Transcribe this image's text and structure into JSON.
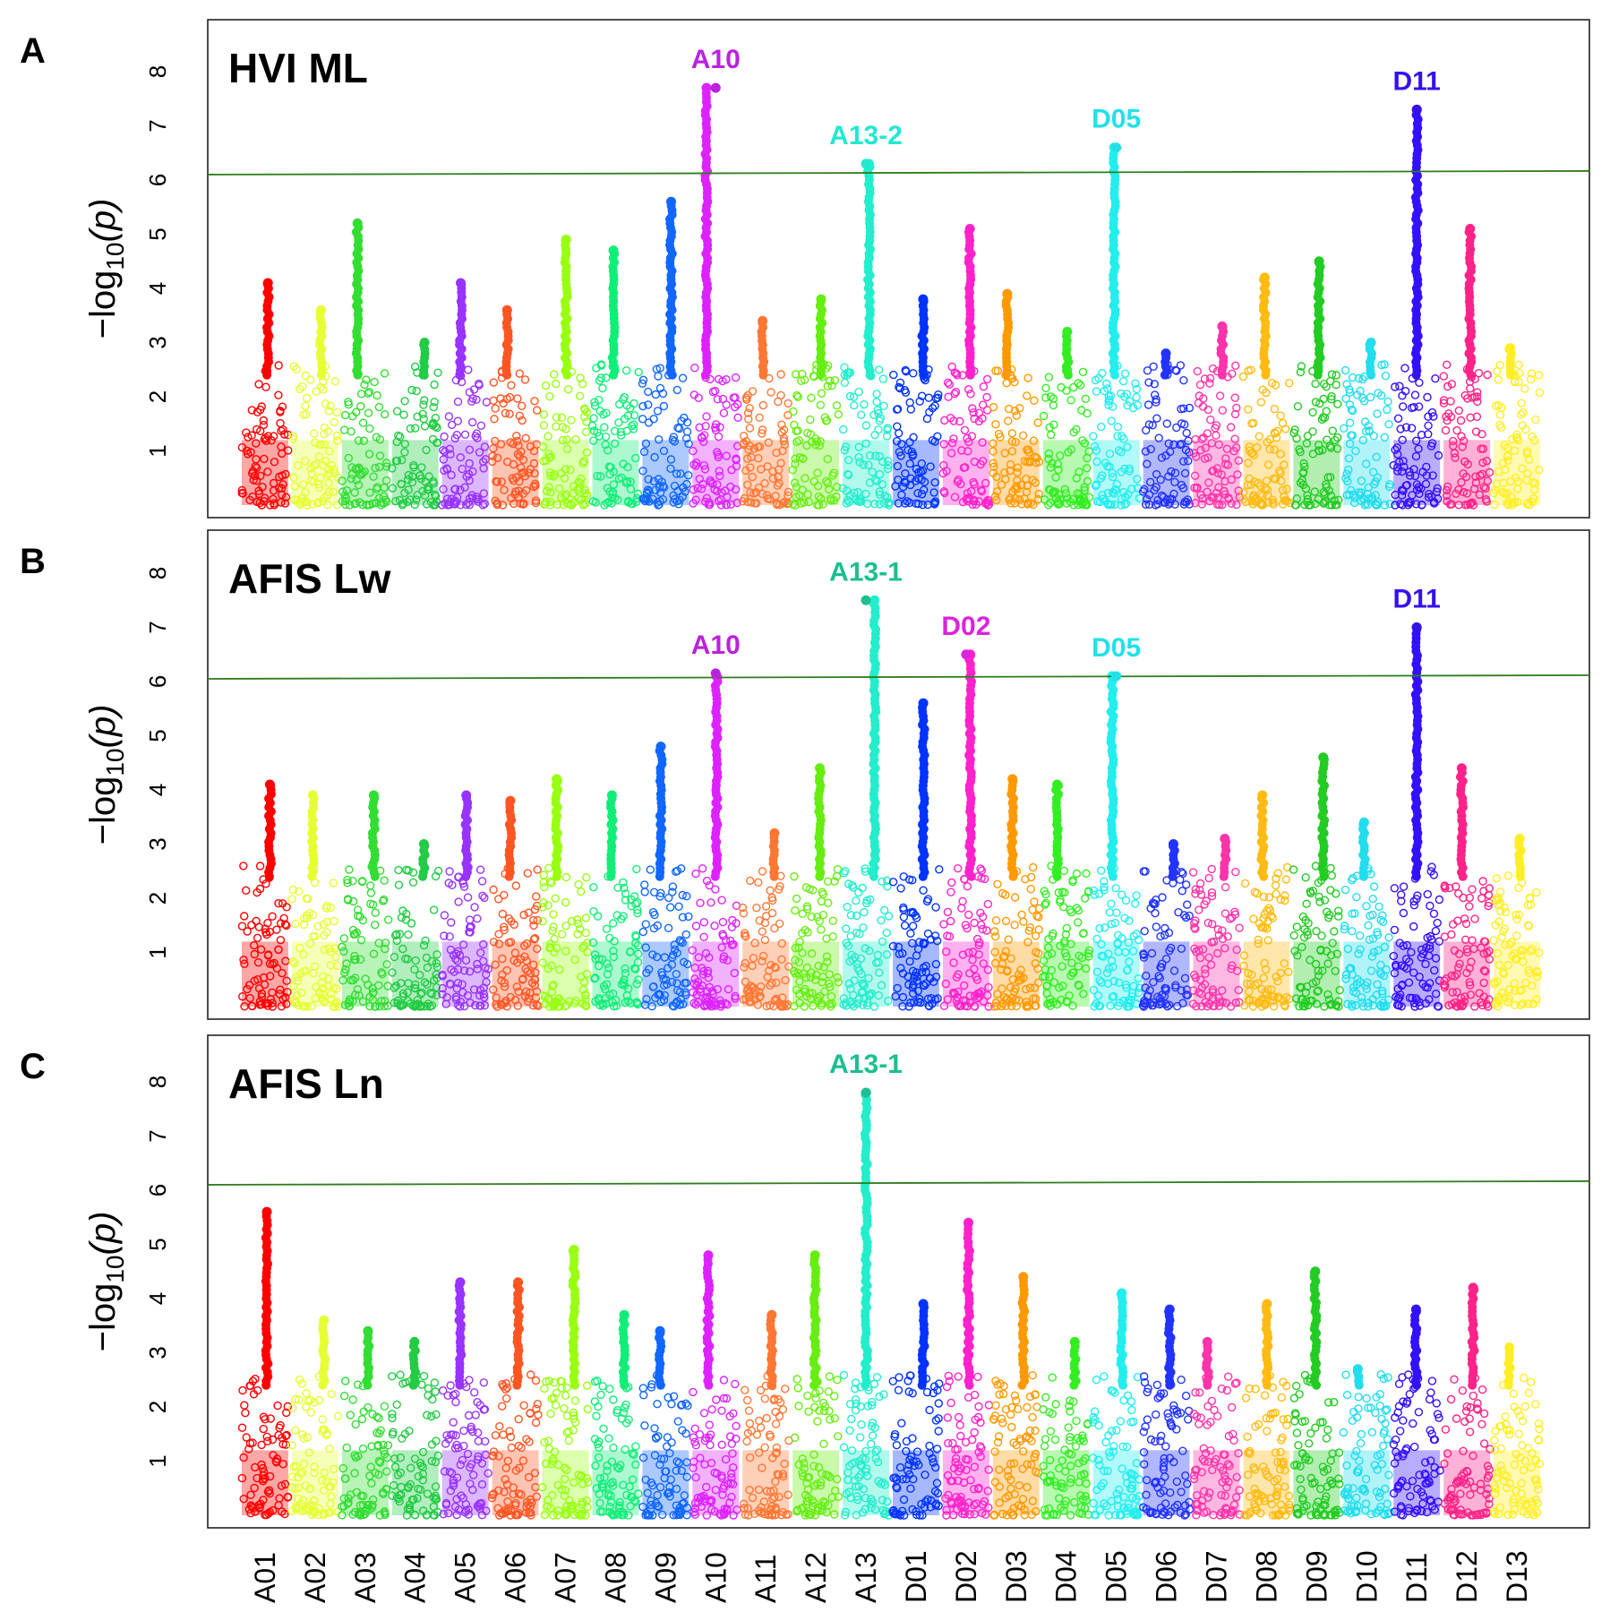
{
  "chart_data": {
    "type": "scatter",
    "plot_kind": "manhattan",
    "chromosomes": [
      "A01",
      "A02",
      "A03",
      "A04",
      "A05",
      "A06",
      "A07",
      "A08",
      "A09",
      "A10",
      "A11",
      "A12",
      "A13",
      "D01",
      "D02",
      "D03",
      "D04",
      "D05",
      "D06",
      "D07",
      "D08",
      "D09",
      "D10",
      "D11",
      "D12",
      "D13"
    ],
    "chromosome_colors": [
      "#ff0000",
      "#e6ff33",
      "#33dd33",
      "#22cc44",
      "#9933ff",
      "#ff5522",
      "#99ff11",
      "#11ee77",
      "#1166ff",
      "#dd22ff",
      "#ff7733",
      "#66ee11",
      "#22eecc",
      "#0033ff",
      "#ff22cc",
      "#ff9900",
      "#33ee22",
      "#22eeee",
      "#2233ff",
      "#ff33aa",
      "#ffbb11",
      "#22cc22",
      "#22ddee",
      "#3311ff",
      "#ff2288",
      "#ffee22"
    ],
    "xtick_labels": [
      "A01",
      "A02",
      "A03",
      "A04",
      "A05",
      "A06",
      "A07",
      "A08",
      "A09",
      "A10",
      "A11",
      "A12",
      "A13",
      "D01",
      "D02",
      "D03",
      "D04",
      "D05",
      "D06",
      "D07",
      "D08",
      "D09",
      "D10",
      "D11",
      "D12",
      "D13"
    ],
    "ylabel_prefix": "−log",
    "ylabel_sub": "10",
    "ylabel_suffix": "(p)",
    "yticks": [
      "1",
      "2",
      "3",
      "4",
      "5",
      "6",
      "7",
      "8"
    ],
    "ylim": [
      0,
      8.5
    ],
    "panels": [
      {
        "letter": "A",
        "title": "HVI ML",
        "threshold": 6.1,
        "chrom_max": [
          4.1,
          3.6,
          5.2,
          3.0,
          4.1,
          3.6,
          4.9,
          4.7,
          5.6,
          7.7,
          3.4,
          3.8,
          6.3,
          3.8,
          5.1,
          3.9,
          3.2,
          6.6,
          2.8,
          3.3,
          4.2,
          4.5,
          3.0,
          7.3,
          5.1,
          2.9
        ],
        "peaks": [
          {
            "label": "A10",
            "chrom": "A10",
            "value": 7.7,
            "color": "#bb22dd"
          },
          {
            "label": "A13-2",
            "chrom": "A13",
            "value": 6.3,
            "color": "#22e8d0"
          },
          {
            "label": "D05",
            "chrom": "D05",
            "value": 6.6,
            "color": "#22e0e8"
          },
          {
            "label": "D11",
            "chrom": "D11",
            "value": 7.3,
            "color": "#3311ee"
          }
        ]
      },
      {
        "letter": "B",
        "title": "AFIS Lw",
        "threshold": 6.05,
        "chrom_max": [
          4.1,
          3.9,
          3.9,
          3.0,
          3.9,
          3.8,
          4.2,
          3.9,
          4.8,
          6.1,
          3.2,
          4.4,
          7.5,
          5.6,
          6.5,
          4.2,
          4.1,
          6.1,
          3.0,
          3.1,
          3.9,
          4.6,
          3.4,
          7.0,
          4.4,
          3.1
        ],
        "peaks": [
          {
            "label": "A10",
            "chrom": "A10",
            "value": 6.15,
            "color": "#bb22dd"
          },
          {
            "label": "A13-1",
            "chrom": "A13",
            "value": 7.5,
            "color": "#1cbf8f"
          },
          {
            "label": "D02",
            "chrom": "D02",
            "value": 6.5,
            "color": "#dd22dd"
          },
          {
            "label": "D05",
            "chrom": "D05",
            "value": 6.1,
            "color": "#22e0e8"
          },
          {
            "label": "D11",
            "chrom": "D11",
            "value": 7.0,
            "color": "#3311ee"
          }
        ]
      },
      {
        "letter": "C",
        "title": "AFIS Ln",
        "threshold": 6.1,
        "chrom_max": [
          5.6,
          3.6,
          3.4,
          3.2,
          4.3,
          4.3,
          4.9,
          3.7,
          3.4,
          4.8,
          3.7,
          4.8,
          7.8,
          3.9,
          5.4,
          4.4,
          3.2,
          4.1,
          3.8,
          3.2,
          3.9,
          4.5,
          2.7,
          3.8,
          4.2,
          3.1
        ],
        "peaks": [
          {
            "label": "A13-1",
            "chrom": "A13",
            "value": 7.8,
            "color": "#1cbf8f"
          }
        ]
      }
    ]
  }
}
